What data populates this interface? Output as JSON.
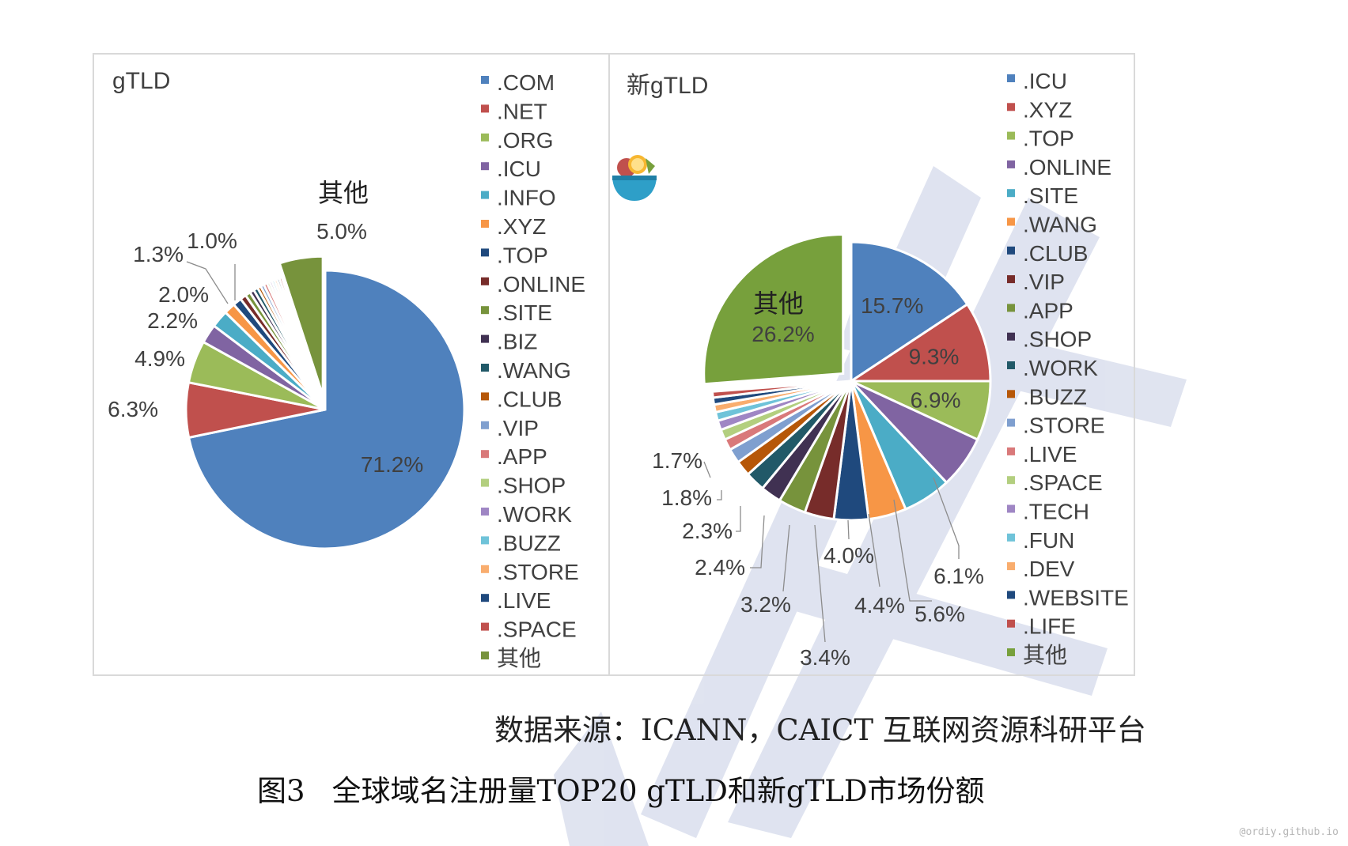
{
  "colors": {
    "blue": "#4F81BD",
    "red": "#C0504D",
    "green": "#9BBB59",
    "purple": "#8064A2",
    "aqua": "#4BACC6",
    "orange": "#F79646",
    "dark_blue": "#1F497D",
    "dark_red": "#772C2A",
    "olive": "#77933C",
    "indigo": "#403152",
    "teal": "#215968",
    "brown": "#B65708",
    "light_blue": "#7F9FCF",
    "light_red": "#D9797A",
    "light_green": "#B3CF7F",
    "light_purple": "#9F86C4",
    "light_aqua": "#6FC3D9",
    "light_orange": "#F9AD6E",
    "other_green": "#77A03C",
    "frame": "#D9D9D9",
    "label": "#404040",
    "watermark": "#AEB8D8"
  },
  "chart_data": [
    {
      "type": "pie",
      "title": "gTLD",
      "legend_position": "right",
      "slices": [
        {
          "label": ".COM",
          "value": 71.2,
          "color": "#4F81BD",
          "data_label": "71.2%"
        },
        {
          "label": ".NET",
          "value": 6.3,
          "color": "#C0504D",
          "data_label": "6.3%"
        },
        {
          "label": ".ORG",
          "value": 4.9,
          "color": "#9BBB59",
          "data_label": "4.9%"
        },
        {
          "label": ".ICU",
          "value": 2.2,
          "color": "#8064A2",
          "data_label": "2.2%"
        },
        {
          "label": ".INFO",
          "value": 2.0,
          "color": "#4BACC6",
          "data_label": "2.0%"
        },
        {
          "label": ".XYZ",
          "value": 1.3,
          "color": "#F79646",
          "data_label": "1.3%"
        },
        {
          "label": ".TOP",
          "value": 1.0,
          "color": "#1F497D",
          "data_label": "1.0%"
        },
        {
          "label": ".ONLINE",
          "value": 0.7,
          "color": "#772C2A",
          "data_label": ""
        },
        {
          "label": ".SITE",
          "value": 0.6,
          "color": "#77933C",
          "data_label": ""
        },
        {
          "label": ".BIZ",
          "value": 0.5,
          "color": "#403152",
          "data_label": ""
        },
        {
          "label": ".WANG",
          "value": 0.5,
          "color": "#215968",
          "data_label": ""
        },
        {
          "label": ".CLUB",
          "value": 0.4,
          "color": "#B65708",
          "data_label": ""
        },
        {
          "label": ".VIP",
          "value": 0.4,
          "color": "#7F9FCF",
          "data_label": ""
        },
        {
          "label": ".APP",
          "value": 0.4,
          "color": "#D9797A",
          "data_label": ""
        },
        {
          "label": ".SHOP",
          "value": 0.3,
          "color": "#B3CF7F",
          "data_label": ""
        },
        {
          "label": ".WORK",
          "value": 0.3,
          "color": "#9F86C4",
          "data_label": ""
        },
        {
          "label": ".BUZZ",
          "value": 0.3,
          "color": "#6FC3D9",
          "data_label": ""
        },
        {
          "label": ".STORE",
          "value": 0.3,
          "color": "#F9AD6E",
          "data_label": ""
        },
        {
          "label": ".LIVE",
          "value": 0.3,
          "color": "#1F497D",
          "data_label": ""
        },
        {
          "label": ".SPACE",
          "value": 0.3,
          "color": "#C0504D",
          "data_label": ""
        },
        {
          "label": "其他",
          "value": 5.0,
          "color": "#77933C",
          "data_label": "5.0%",
          "category_label": "其他",
          "exploded": true
        }
      ]
    },
    {
      "type": "pie",
      "title": "新gTLD",
      "legend_position": "right",
      "slices": [
        {
          "label": ".ICU",
          "value": 15.7,
          "color": "#4F81BD",
          "data_label": "15.7%"
        },
        {
          "label": ".XYZ",
          "value": 9.3,
          "color": "#C0504D",
          "data_label": "9.3%"
        },
        {
          "label": ".TOP",
          "value": 6.9,
          "color": "#9BBB59",
          "data_label": "6.9%"
        },
        {
          "label": ".ONLINE",
          "value": 6.1,
          "color": "#8064A2",
          "data_label": "6.1%"
        },
        {
          "label": ".SITE",
          "value": 5.6,
          "color": "#4BACC6",
          "data_label": "5.6%"
        },
        {
          "label": ".WANG",
          "value": 4.4,
          "color": "#F79646",
          "data_label": "4.4%"
        },
        {
          "label": ".CLUB",
          "value": 4.0,
          "color": "#1F497D",
          "data_label": "4.0%"
        },
        {
          "label": ".VIP",
          "value": 3.4,
          "color": "#772C2A",
          "data_label": "3.4%"
        },
        {
          "label": ".APP",
          "value": 3.2,
          "color": "#77933C",
          "data_label": "3.2%"
        },
        {
          "label": ".SHOP",
          "value": 2.4,
          "color": "#403152",
          "data_label": "2.4%"
        },
        {
          "label": ".WORK",
          "value": 2.3,
          "color": "#215968",
          "data_label": "2.3%"
        },
        {
          "label": ".BUZZ",
          "value": 1.8,
          "color": "#B65708",
          "data_label": "1.8%"
        },
        {
          "label": ".STORE",
          "value": 1.7,
          "color": "#7F9FCF",
          "data_label": "1.7%"
        },
        {
          "label": ".LIVE",
          "value": 1.3,
          "color": "#D9797A",
          "data_label": ""
        },
        {
          "label": ".SPACE",
          "value": 1.2,
          "color": "#B3CF7F",
          "data_label": ""
        },
        {
          "label": ".TECH",
          "value": 1.1,
          "color": "#9F86C4",
          "data_label": ""
        },
        {
          "label": ".FUN",
          "value": 1.0,
          "color": "#6FC3D9",
          "data_label": ""
        },
        {
          "label": ".DEV",
          "value": 0.9,
          "color": "#F9AD6E",
          "data_label": ""
        },
        {
          "label": ".WEBSITE",
          "value": 0.8,
          "color": "#1F497D",
          "data_label": ""
        },
        {
          "label": ".LIFE",
          "value": 0.7,
          "color": "#C0504D",
          "data_label": ""
        },
        {
          "label": "其他",
          "value": 26.2,
          "color": "#77A03C",
          "data_label": "26.2%",
          "category_label": "其他",
          "exploded": true
        }
      ]
    }
  ],
  "source": {
    "text": "数据来源：ICANN，CAICT 互联网资源科研平台"
  },
  "caption": {
    "number": "图3",
    "text": "全球域名注册量TOP20 gTLD和新gTLD市场份额"
  },
  "watermark_credit": "@ordiy.github.io"
}
